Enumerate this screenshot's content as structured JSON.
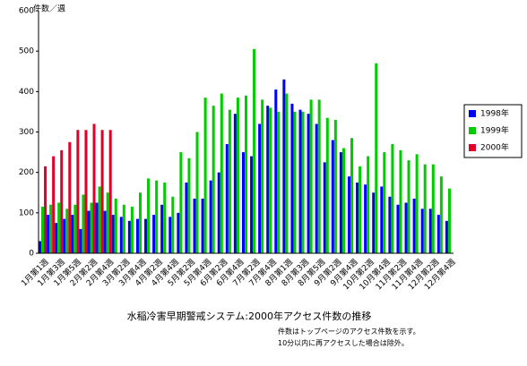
{
  "chart_data": {
    "type": "bar",
    "title": "水稲冷害早期警戒システム:2000年アクセス件数の推移",
    "y_label": "件数／週",
    "notes": [
      "件数はトップページのアクセス件数を示す。",
      "10分以内に再アクセスした場合は除外。"
    ],
    "categories": [
      "1月第1週",
      null,
      "1月第3週",
      null,
      "1月第5週",
      null,
      "2月第2週",
      null,
      "2月第4週",
      null,
      "3月第2週",
      null,
      "3月第4週",
      null,
      "4月第2週",
      null,
      "4月第4週",
      null,
      "5月第2週",
      null,
      "5月第4週",
      null,
      "6月第2週",
      null,
      "6月第4週",
      null,
      "7月第2週",
      null,
      "7月第4週",
      null,
      "8月第1週",
      null,
      "8月第3週",
      null,
      "8月第5週",
      null,
      "9月第2週",
      null,
      "9月第4週",
      null,
      "10月第2週",
      null,
      "10月第4週",
      null,
      "11月第2週",
      null,
      "11月第4週",
      null,
      "12月第2週",
      null,
      "12月第4週"
    ],
    "series": [
      {
        "name": "1998年",
        "color": "#0000ff",
        "values": [
          30,
          95,
          75,
          85,
          95,
          60,
          105,
          125,
          105,
          95,
          90,
          80,
          85,
          85,
          95,
          120,
          90,
          100,
          175,
          135,
          135,
          180,
          200,
          270,
          345,
          250,
          240,
          320,
          365,
          405,
          430,
          370,
          355,
          345,
          320,
          225,
          280,
          250,
          190,
          175,
          170,
          150,
          165,
          140,
          120,
          125,
          135,
          110,
          110,
          95,
          80
        ]
      },
      {
        "name": "1999年",
        "color": "#00cc00",
        "values": [
          115,
          120,
          125,
          110,
          120,
          145,
          125,
          165,
          150,
          135,
          120,
          115,
          150,
          185,
          180,
          175,
          140,
          250,
          235,
          300,
          385,
          365,
          395,
          355,
          385,
          390,
          505,
          380,
          360,
          350,
          395,
          350,
          350,
          380,
          380,
          335,
          330,
          260,
          285,
          215,
          240,
          470,
          250,
          270,
          255,
          230,
          245,
          220,
          220,
          190,
          160
        ]
      },
      {
        "name": "2000年",
        "color": "#e0002a",
        "values": [
          215,
          240,
          255,
          275,
          305,
          305,
          320,
          305,
          305,
          null,
          null,
          null,
          null,
          null,
          null,
          null,
          null,
          null,
          null,
          null,
          null,
          null,
          null,
          null,
          null,
          null,
          null,
          null,
          null,
          null,
          null,
          null,
          null,
          null,
          null,
          null,
          null,
          null,
          null,
          null,
          null,
          null,
          null,
          null,
          null,
          null,
          null,
          null,
          null,
          null,
          null
        ]
      }
    ],
    "ylim": [
      0,
      600
    ],
    "yticks": [
      0,
      100,
      200,
      300,
      400,
      500,
      600
    ],
    "grid": false,
    "legend": "right"
  }
}
